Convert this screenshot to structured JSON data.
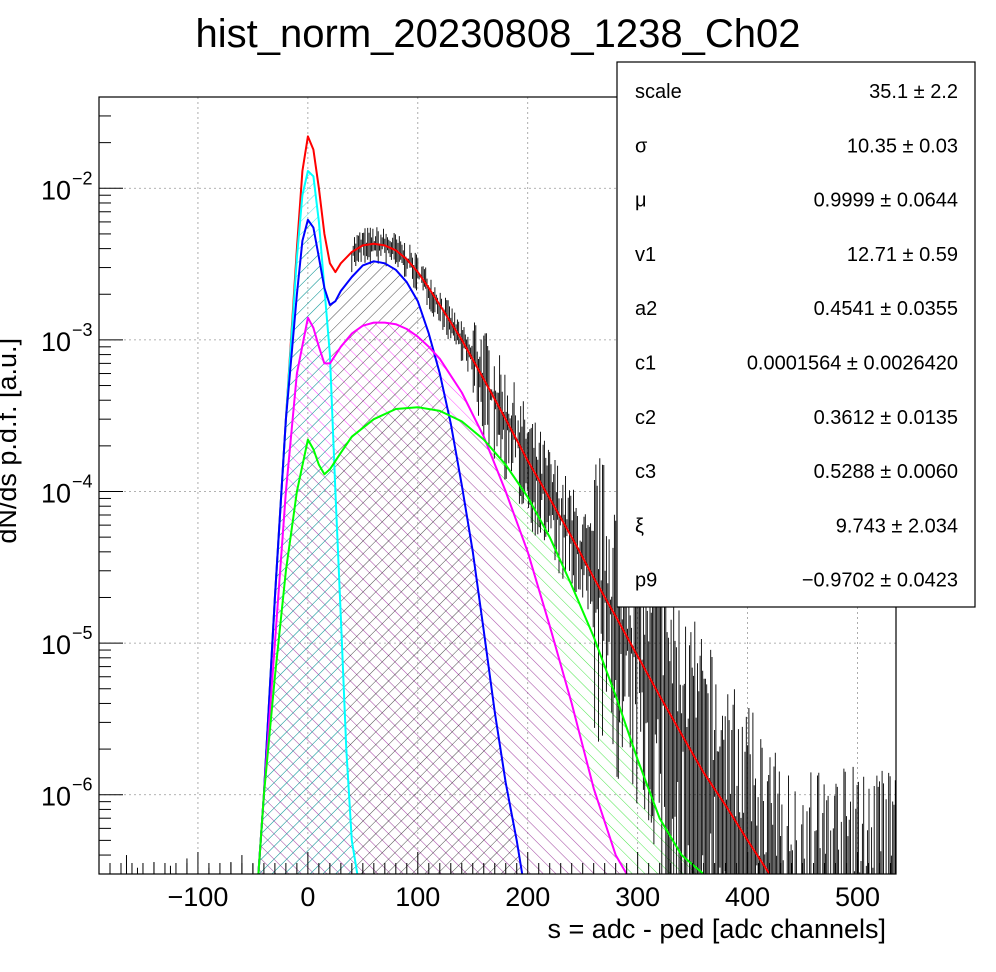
{
  "chart_data": {
    "type": "line",
    "title": "hist_norm_20230808_1238_Ch02",
    "xlabel": "s = adc - ped [adc channels]",
    "ylabel": "dN/ds p.d.f. [a.u.]",
    "xlim": [
      -190,
      535
    ],
    "ylim": [
      3e-07,
      0.04
    ],
    "yscale": "log",
    "grid": true,
    "x_ticks": [
      -100,
      0,
      100,
      200,
      300,
      400,
      500
    ],
    "y_ticks": [
      {
        "value": 1e-06,
        "base": "10",
        "exp": "−6"
      },
      {
        "value": 1e-05,
        "base": "10",
        "exp": "−5"
      },
      {
        "value": 0.0001,
        "base": "10",
        "exp": "−4"
      },
      {
        "value": 0.001,
        "base": "10",
        "exp": "−3"
      },
      {
        "value": 0.01,
        "base": "10",
        "exp": "−2"
      }
    ],
    "series": [
      {
        "color": "#ff0000",
        "x": [
          -45,
          -40,
          -30,
          -20,
          -10,
          -5,
          0,
          5,
          10,
          15,
          20,
          25,
          30,
          40,
          50,
          60,
          70,
          80,
          90,
          100,
          110,
          120,
          140,
          160,
          180,
          200,
          220,
          240,
          260,
          280,
          300,
          320,
          340,
          360,
          380,
          400,
          420,
          432
        ],
        "y": [
          3e-07,
          1e-06,
          2e-05,
          0.0003,
          0.004,
          0.013,
          0.022,
          0.018,
          0.01,
          0.005,
          0.0032,
          0.0028,
          0.0032,
          0.0038,
          0.0042,
          0.0043,
          0.0042,
          0.0039,
          0.0034,
          0.0028,
          0.0022,
          0.0017,
          0.001,
          0.00055,
          0.0003,
          0.00016,
          9e-05,
          5e-05,
          2.7e-05,
          1.5e-05,
          8.2e-06,
          4.5e-06,
          2.5e-06,
          1.4e-06,
          8.5e-07,
          5e-07,
          3e-07,
          2e-07
        ]
      },
      {
        "color": "#00ffff",
        "x": [
          -45,
          -40,
          -30,
          -20,
          -10,
          -5,
          0,
          5,
          10,
          20,
          25,
          30,
          35,
          40,
          45
        ],
        "y": [
          3e-07,
          1e-06,
          2e-05,
          0.0003,
          0.0035,
          0.009,
          0.013,
          0.012,
          0.006,
          0.0008,
          0.0001,
          1.5e-05,
          2e-06,
          5e-07,
          3e-07
        ]
      },
      {
        "color": "#0000ff",
        "x": [
          -45,
          -40,
          -30,
          -20,
          -10,
          -5,
          0,
          5,
          10,
          15,
          20,
          25,
          30,
          40,
          50,
          60,
          70,
          80,
          90,
          100,
          110,
          120,
          130,
          140,
          150,
          160,
          170,
          180,
          190,
          195
        ],
        "y": [
          3e-07,
          1e-06,
          2e-05,
          0.0003,
          0.002,
          0.0045,
          0.0062,
          0.0055,
          0.0035,
          0.0022,
          0.0017,
          0.0018,
          0.0021,
          0.0026,
          0.0031,
          0.0033,
          0.0032,
          0.0029,
          0.0024,
          0.0018,
          0.0011,
          0.0006,
          0.00028,
          0.00011,
          4e-05,
          1.2e-05,
          3.5e-06,
          1.2e-06,
          5e-07,
          3e-07
        ]
      },
      {
        "color": "#ff00ff",
        "x": [
          -45,
          -40,
          -30,
          -20,
          -10,
          0,
          5,
          10,
          15,
          20,
          30,
          40,
          50,
          60,
          70,
          80,
          90,
          100,
          110,
          120,
          140,
          160,
          180,
          200,
          220,
          240,
          260,
          280,
          290
        ],
        "y": [
          3e-07,
          1e-06,
          1e-05,
          0.0001,
          0.0006,
          0.0014,
          0.0012,
          0.0009,
          0.0007,
          0.0007,
          0.0009,
          0.0011,
          0.00124,
          0.0013,
          0.0013,
          0.00127,
          0.00118,
          0.00105,
          0.0009,
          0.00075,
          0.00045,
          0.00023,
          0.0001,
          4e-05,
          1.3e-05,
          4e-06,
          1.1e-06,
          4e-07,
          3e-07
        ]
      },
      {
        "color": "#00ff00",
        "x": [
          -45,
          -40,
          -30,
          -20,
          -10,
          0,
          5,
          10,
          15,
          20,
          30,
          40,
          60,
          80,
          100,
          120,
          140,
          160,
          180,
          200,
          220,
          240,
          260,
          280,
          300,
          320,
          340,
          360
        ],
        "y": [
          3e-07,
          1e-06,
          6e-06,
          3e-05,
          0.0001,
          0.00022,
          0.00019,
          0.00015,
          0.00013,
          0.00014,
          0.00018,
          0.00023,
          0.0003,
          0.00035,
          0.00036,
          0.00034,
          0.00029,
          0.00022,
          0.00015,
          9.2e-05,
          5e-05,
          2.4e-05,
          1.1e-05,
          4.5e-06,
          1.7e-06,
          7e-07,
          4e-07,
          3e-07
        ]
      },
      {
        "color": "#000000",
        "x": [
          -180,
          -165,
          -155,
          -140,
          -125,
          -110,
          -90,
          -70,
          -60,
          -50
        ],
        "y": [
          3.5e-07,
          4e-07,
          3.3e-07,
          3.6e-07,
          3.4e-07,
          3.8e-07,
          3.3e-07,
          3.6e-07,
          4e-07,
          3.5e-07
        ]
      }
    ]
  },
  "stats_box": {
    "rows": [
      {
        "name": "scale",
        "value": "35.1",
        "error": "2.2"
      },
      {
        "name": "σ",
        "value": "10.35",
        "error": "0.03"
      },
      {
        "name": "μ",
        "value": "0.9999",
        "error": "0.0644"
      },
      {
        "name": "v1",
        "value": "12.71",
        "error": "0.59"
      },
      {
        "name": "a2",
        "value": "0.4541",
        "error": "0.0355"
      },
      {
        "name": "c1",
        "value": "0.0001564",
        "error": "0.0026420"
      },
      {
        "name": "c2",
        "value": "0.3612",
        "error": "0.0135"
      },
      {
        "name": "c3",
        "value": "0.5288",
        "error": "0.0060"
      },
      {
        "name": "ξ",
        "value": "9.743",
        "error": "2.034"
      },
      {
        "name": "p9",
        "value": "−0.9702",
        "error": "0.0423"
      }
    ],
    "pm": "±"
  }
}
